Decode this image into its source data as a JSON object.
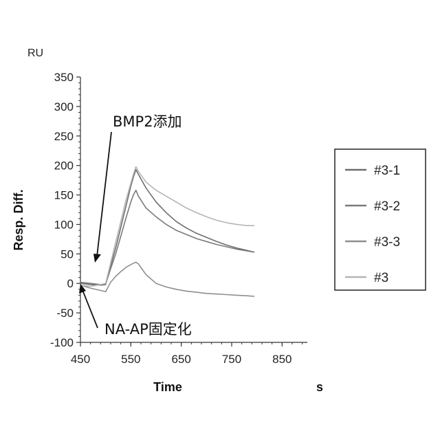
{
  "chart_data": {
    "type": "line",
    "xlabel": "Time",
    "ylabel": "Resp. Diff.",
    "x_unit": "s",
    "y_unit": "RU",
    "xlim": [
      450,
      900
    ],
    "ylim": [
      -100,
      350
    ],
    "x_ticks": [
      450,
      550,
      650,
      750,
      850
    ],
    "y_ticks": [
      -100,
      -50,
      0,
      50,
      100,
      150,
      200,
      250,
      300,
      350
    ],
    "grid": false,
    "legend_position": "right",
    "series": [
      {
        "name": "#3-1",
        "color": "#6d6d6d",
        "x": [
          450,
          470,
          490,
          500,
          510,
          520,
          530,
          540,
          550,
          555,
          560,
          565,
          580,
          600,
          620,
          640,
          660,
          680,
          700,
          720,
          740,
          760,
          780,
          795
        ],
        "y": [
          0,
          -2,
          -3,
          -2,
          30,
          60,
          95,
          130,
          165,
          180,
          193,
          185,
          162,
          138,
          120,
          105,
          94,
          85,
          78,
          71,
          65,
          60,
          56,
          53
        ]
      },
      {
        "name": "#3-2",
        "color": "#7a7a7a",
        "x": [
          450,
          470,
          490,
          500,
          510,
          520,
          530,
          540,
          550,
          555,
          560,
          565,
          580,
          600,
          620,
          640,
          660,
          680,
          700,
          720,
          740,
          760,
          780,
          795
        ],
        "y": [
          2,
          0,
          -2,
          -1,
          25,
          50,
          80,
          110,
          138,
          150,
          158,
          148,
          128,
          113,
          100,
          90,
          83,
          76,
          71,
          66,
          62,
          58,
          55,
          53
        ]
      },
      {
        "name": "#3-3",
        "color": "#8e8e8e",
        "x": [
          450,
          470,
          490,
          500,
          510,
          520,
          530,
          540,
          550,
          560,
          565,
          580,
          600,
          620,
          640,
          660,
          680,
          700,
          720,
          740,
          760,
          780,
          795
        ],
        "y": [
          -3,
          -8,
          -12,
          -14,
          2,
          12,
          20,
          27,
          32,
          36,
          33,
          15,
          0,
          -6,
          -10,
          -13,
          -15,
          -17,
          -18,
          -19,
          -20,
          -21,
          -22
        ]
      },
      {
        "name": "#3",
        "color": "#b5b5b5",
        "x": [
          450,
          470,
          490,
          500,
          510,
          520,
          530,
          540,
          550,
          555,
          560,
          565,
          580,
          600,
          620,
          640,
          660,
          680,
          700,
          720,
          740,
          760,
          780,
          795
        ],
        "y": [
          -3,
          -5,
          -2,
          0,
          35,
          70,
          105,
          140,
          170,
          185,
          198,
          190,
          172,
          158,
          148,
          138,
          128,
          120,
          113,
          107,
          103,
          100,
          98,
          98
        ]
      }
    ],
    "annotations": [
      {
        "text": "BMP2添加",
        "x": 480,
        "y": 35
      },
      {
        "text": "NA-AP固定化",
        "x": 456,
        "y": -5
      }
    ]
  }
}
